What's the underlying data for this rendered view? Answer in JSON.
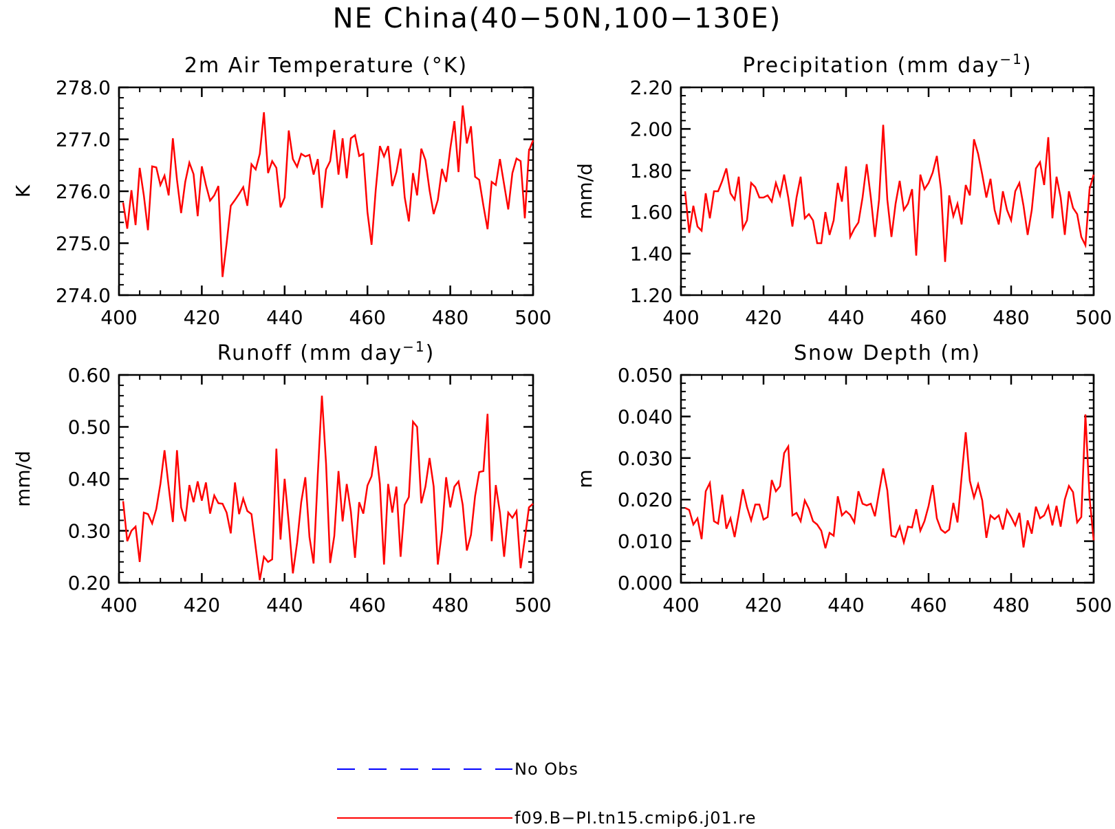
{
  "title": "NE China(40−50N,100−130E)",
  "colors": {
    "model": "#ff0000",
    "obs": "#0000ff",
    "axis": "#000000"
  },
  "legend": {
    "position": "bottom-center",
    "entries": [
      {
        "label": "No Obs",
        "color": "#0000ff",
        "style": "dashed"
      },
      {
        "label": "f09.B−PI.tn15.cmip6.j01.re",
        "color": "#ff0000",
        "style": "solid"
      }
    ]
  },
  "chart_data": [
    {
      "type": "line",
      "title": "2m Air Temperature (°K)",
      "title_parts": {
        "before": "2m Air Temperature (°K)",
        "sup": "",
        "after": ""
      },
      "xlabel": "",
      "ylabel": "K",
      "xlim": [
        400,
        500
      ],
      "ylim": [
        274.0,
        278.0
      ],
      "xticks": [
        400,
        420,
        440,
        460,
        480,
        500
      ],
      "yticks": [
        274.0,
        275.0,
        276.0,
        277.0,
        278.0
      ],
      "ytick_labels": [
        "274.0",
        "275.0",
        "276.0",
        "277.0",
        "278.0"
      ],
      "x_start": 401,
      "series": [
        {
          "values": [
            275.78,
            275.28,
            276.02,
            275.35,
            276.45,
            275.92,
            275.25,
            276.48,
            276.46,
            276.12,
            276.3,
            275.92,
            277.02,
            276.22,
            275.58,
            276.18,
            276.55,
            276.33,
            275.52,
            276.48,
            276.12,
            275.82,
            275.92,
            276.1,
            274.35,
            275.0,
            275.72,
            275.83,
            275.95,
            276.08,
            275.72,
            276.52,
            276.42,
            276.72,
            277.52,
            276.35,
            276.58,
            276.45,
            275.69,
            275.88,
            277.17,
            276.62,
            276.47,
            276.72,
            276.67,
            276.7,
            276.32,
            276.62,
            275.68,
            276.42,
            276.58,
            277.18,
            276.32,
            277.02,
            276.25,
            277.02,
            277.08,
            276.68,
            276.72,
            275.6,
            274.97,
            276.02,
            276.87,
            276.67,
            276.87,
            276.1,
            276.37,
            276.82,
            275.88,
            275.42,
            276.35,
            275.92,
            276.82,
            276.6,
            276.02,
            275.56,
            275.83,
            276.43,
            276.18,
            276.82,
            277.35,
            276.37,
            277.65,
            276.92,
            277.25,
            276.28,
            276.22,
            275.72,
            275.27,
            276.18,
            276.12,
            276.62,
            276.13,
            275.65,
            276.35,
            276.63,
            276.58,
            275.48,
            276.78,
            276.98
          ]
        }
      ]
    },
    {
      "type": "line",
      "title": "Precipitation (mm day⁻¹)",
      "title_parts": {
        "before": "Precipitation (mm day",
        "sup": "−1",
        "after": ")"
      },
      "xlabel": "",
      "ylabel": "mm/d",
      "xlim": [
        400,
        500
      ],
      "ylim": [
        1.2,
        2.2
      ],
      "xticks": [
        400,
        420,
        440,
        460,
        480,
        500
      ],
      "yticks": [
        1.2,
        1.4,
        1.6,
        1.8,
        2.0,
        2.2
      ],
      "ytick_labels": [
        "1.20",
        "1.40",
        "1.60",
        "1.80",
        "2.00",
        "2.20"
      ],
      "x_start": 401,
      "series": [
        {
          "values": [
            1.7,
            1.5,
            1.63,
            1.53,
            1.51,
            1.69,
            1.57,
            1.7,
            1.7,
            1.75,
            1.81,
            1.69,
            1.66,
            1.77,
            1.52,
            1.56,
            1.74,
            1.72,
            1.67,
            1.67,
            1.68,
            1.65,
            1.74,
            1.68,
            1.78,
            1.67,
            1.53,
            1.67,
            1.77,
            1.57,
            1.59,
            1.56,
            1.45,
            1.45,
            1.6,
            1.49,
            1.56,
            1.74,
            1.65,
            1.82,
            1.48,
            1.52,
            1.55,
            1.67,
            1.83,
            1.67,
            1.48,
            1.66,
            2.02,
            1.66,
            1.48,
            1.64,
            1.75,
            1.61,
            1.64,
            1.71,
            1.39,
            1.78,
            1.71,
            1.74,
            1.79,
            1.87,
            1.71,
            1.36,
            1.68,
            1.58,
            1.64,
            1.54,
            1.73,
            1.68,
            1.95,
            1.88,
            1.78,
            1.67,
            1.76,
            1.61,
            1.54,
            1.7,
            1.61,
            1.56,
            1.7,
            1.74,
            1.63,
            1.49,
            1.61,
            1.81,
            1.84,
            1.73,
            1.96,
            1.57,
            1.77,
            1.67,
            1.49,
            1.7,
            1.62,
            1.59,
            1.48,
            1.44,
            1.71,
            1.78
          ]
        }
      ]
    },
    {
      "type": "line",
      "title": "Runoff (mm day⁻¹)",
      "title_parts": {
        "before": "Runoff (mm day",
        "sup": "−1",
        "after": ")"
      },
      "xlabel": "",
      "ylabel": "mm/d",
      "xlim": [
        400,
        500
      ],
      "ylim": [
        0.2,
        0.6
      ],
      "xticks": [
        400,
        420,
        440,
        460,
        480,
        500
      ],
      "yticks": [
        0.2,
        0.3,
        0.4,
        0.5,
        0.6
      ],
      "ytick_labels": [
        "0.20",
        "0.30",
        "0.40",
        "0.50",
        "0.60"
      ],
      "x_start": 401,
      "series": [
        {
          "values": [
            0.357,
            0.28,
            0.3,
            0.308,
            0.24,
            0.335,
            0.332,
            0.314,
            0.342,
            0.39,
            0.455,
            0.385,
            0.317,
            0.455,
            0.345,
            0.318,
            0.388,
            0.355,
            0.395,
            0.358,
            0.393,
            0.333,
            0.368,
            0.353,
            0.352,
            0.335,
            0.295,
            0.393,
            0.332,
            0.362,
            0.338,
            0.332,
            0.268,
            0.205,
            0.25,
            0.24,
            0.245,
            0.458,
            0.283,
            0.4,
            0.315,
            0.218,
            0.277,
            0.355,
            0.403,
            0.288,
            0.237,
            0.408,
            0.56,
            0.43,
            0.238,
            0.29,
            0.415,
            0.318,
            0.39,
            0.337,
            0.248,
            0.355,
            0.333,
            0.387,
            0.405,
            0.463,
            0.39,
            0.235,
            0.39,
            0.335,
            0.385,
            0.25,
            0.35,
            0.365,
            0.51,
            0.5,
            0.353,
            0.385,
            0.44,
            0.385,
            0.235,
            0.3,
            0.403,
            0.345,
            0.385,
            0.395,
            0.35,
            0.262,
            0.292,
            0.367,
            0.413,
            0.415,
            0.525,
            0.28,
            0.388,
            0.335,
            0.25,
            0.335,
            0.325,
            0.338,
            0.228,
            0.285,
            0.345,
            0.352
          ]
        }
      ]
    },
    {
      "type": "line",
      "title": "Snow Depth (m)",
      "title_parts": {
        "before": "Snow Depth (m)",
        "sup": "",
        "after": ""
      },
      "xlabel": "",
      "ylabel": "m",
      "xlim": [
        400,
        500
      ],
      "ylim": [
        0.0,
        0.05
      ],
      "xticks": [
        400,
        420,
        440,
        460,
        480,
        500
      ],
      "yticks": [
        0.0,
        0.01,
        0.02,
        0.03,
        0.04,
        0.05
      ],
      "ytick_labels": [
        "0.000",
        "0.010",
        "0.020",
        "0.030",
        "0.040",
        "0.050"
      ],
      "x_start": 401,
      "series": [
        {
          "values": [
            0.018,
            0.0175,
            0.014,
            0.0155,
            0.0105,
            0.022,
            0.024,
            0.0148,
            0.0142,
            0.0212,
            0.013,
            0.0155,
            0.011,
            0.0165,
            0.0225,
            0.0182,
            0.015,
            0.0188,
            0.0188,
            0.0152,
            0.0158,
            0.0247,
            0.022,
            0.0232,
            0.0312,
            0.0328,
            0.0162,
            0.0168,
            0.0148,
            0.0198,
            0.0178,
            0.0148,
            0.014,
            0.0125,
            0.0083,
            0.012,
            0.0113,
            0.0208,
            0.0162,
            0.0172,
            0.0163,
            0.0145,
            0.022,
            0.019,
            0.0186,
            0.019,
            0.016,
            0.0218,
            0.0275,
            0.0222,
            0.0113,
            0.011,
            0.0135,
            0.0097,
            0.0135,
            0.0133,
            0.0177,
            0.0125,
            0.0148,
            0.0185,
            0.0235,
            0.0155,
            0.0128,
            0.012,
            0.0128,
            0.0192,
            0.0145,
            0.0255,
            0.0362,
            0.0245,
            0.0205,
            0.0237,
            0.0198,
            0.0108,
            0.0162,
            0.0153,
            0.0162,
            0.0128,
            0.0175,
            0.0158,
            0.0138,
            0.0168,
            0.0085,
            0.015,
            0.0118,
            0.0183,
            0.0155,
            0.0162,
            0.0185,
            0.0138,
            0.0185,
            0.0135,
            0.02,
            0.0233,
            0.0218,
            0.0145,
            0.0158,
            0.0405,
            0.0205,
            0.0102
          ]
        }
      ]
    }
  ]
}
